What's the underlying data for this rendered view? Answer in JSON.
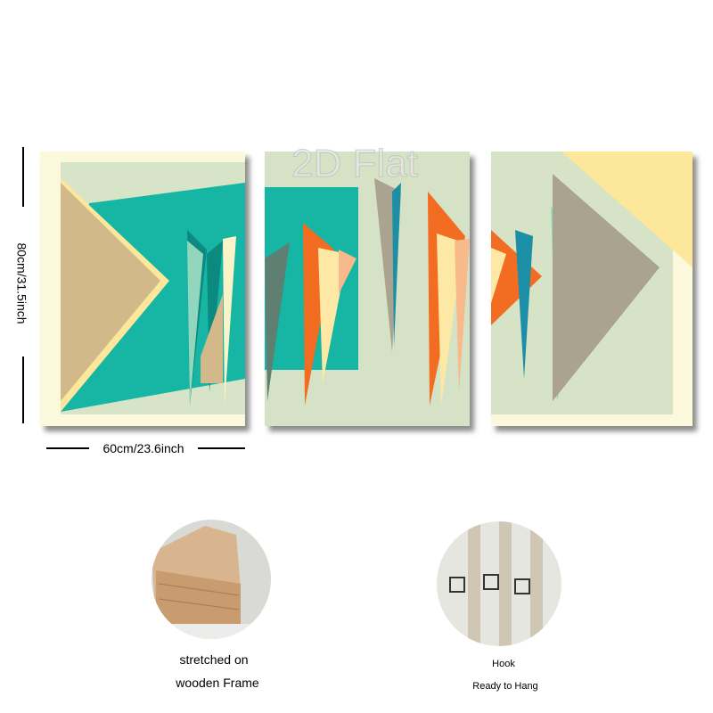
{
  "watermark": "2D Flat",
  "dimensions": {
    "height": "80cm/31.5inch",
    "width": "60cm/23.6inch"
  },
  "features": [
    {
      "lines": [
        "stretched on",
        "wooden Frame"
      ]
    },
    {
      "lines": [
        "Hook",
        "Ready to Hang"
      ]
    }
  ]
}
